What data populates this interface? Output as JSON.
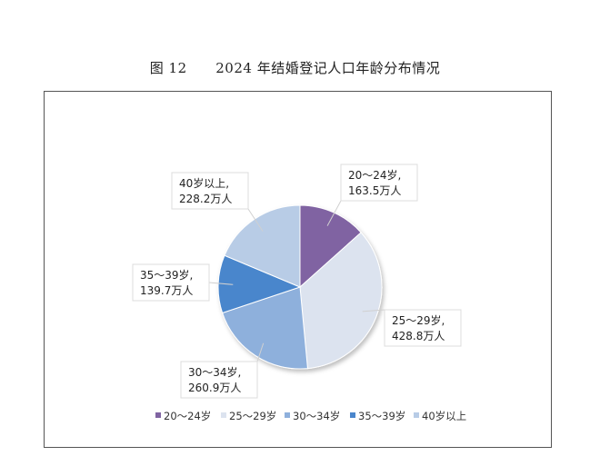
{
  "figure": {
    "number": "图 12",
    "caption": "2024 年结婚登记人口年龄分布情况"
  },
  "chart_data": {
    "type": "pie",
    "title": "",
    "unit": "万人",
    "legend_position": "bottom",
    "slices": [
      {
        "label": "20～24岁",
        "value": 163.5,
        "value_text": "163.5万人",
        "callout_label": "20～24岁,",
        "color": "#8064a2"
      },
      {
        "label": "25～29岁",
        "value": 428.8,
        "value_text": "428.8万人",
        "callout_label": "25～29岁,",
        "color": "#dce3ef"
      },
      {
        "label": "30～34岁",
        "value": 260.9,
        "value_text": "260.9万人",
        "callout_label": "30～34岁,",
        "color": "#8eb0dc"
      },
      {
        "label": "35～39岁",
        "value": 139.7,
        "value_text": "139.7万人",
        "callout_label": "35～39岁,",
        "color": "#4a86cc"
      },
      {
        "label": "40岁以上",
        "value": 228.2,
        "value_text": "228.2万人",
        "callout_label": "40岁以上,",
        "color": "#b8cce6"
      }
    ]
  }
}
